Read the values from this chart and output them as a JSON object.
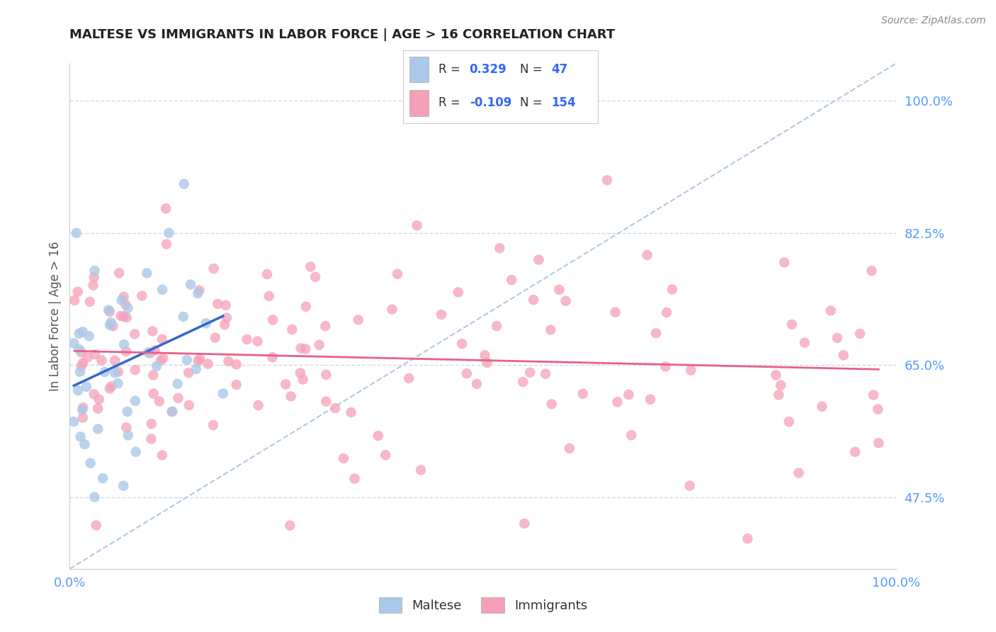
{
  "title": "MALTESE VS IMMIGRANTS IN LABOR FORCE | AGE > 16 CORRELATION CHART",
  "source_text": "Source: ZipAtlas.com",
  "ylabel": "In Labor Force | Age > 16",
  "xlim": [
    0.0,
    1.0
  ],
  "ylim": [
    0.38,
    1.05
  ],
  "y_tick_values": [
    0.475,
    0.65,
    0.825,
    1.0
  ],
  "y_tick_labels": [
    "47.5%",
    "65.0%",
    "82.5%",
    "100.0%"
  ],
  "x_tick_values": [
    0.0,
    1.0
  ],
  "x_tick_labels": [
    "0.0%",
    "100.0%"
  ],
  "maltese_color": "#aac9e8",
  "immigrants_color": "#f5a0b8",
  "maltese_line_color": "#3366cc",
  "immigrants_line_color": "#e8608a",
  "dashed_line_color": "#b0c8e0",
  "R_maltese": 0.329,
  "N_maltese": 47,
  "R_immigrants": -0.109,
  "N_immigrants": 154,
  "legend_label_maltese": "Maltese",
  "legend_label_immigrants": "Immigrants",
  "background_color": "#ffffff",
  "grid_color": "#d0d8e8",
  "title_color": "#222222",
  "axis_label_color": "#555555",
  "tick_color": "#5599ff",
  "source_color": "#888888",
  "legend_text_color": "#333333",
  "legend_value_color": "#3366ff"
}
